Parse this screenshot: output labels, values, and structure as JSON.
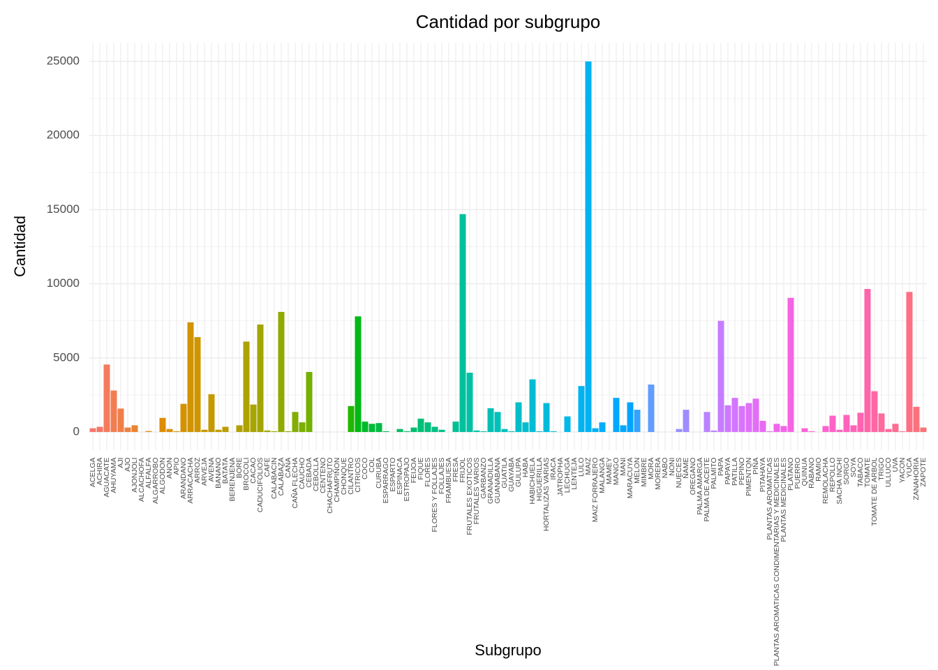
{
  "chart_data": {
    "type": "bar",
    "title": "Cantidad por subgrupo",
    "x_label": "Subgrupo",
    "y_label": "Cantidad",
    "categories": [
      "ACELGA",
      "ACHIRA",
      "AGUACATE",
      "AHUYAMA",
      "AJI",
      "AJO",
      "AJONJOLI",
      "ALCACHOFA",
      "ALFALFA",
      "ALGARROBO",
      "ALGODON",
      "ANON",
      "APIO",
      "ARANDANO",
      "ARRACACHA",
      "ARROZ",
      "ARVEJA",
      "AVENA",
      "BANANO",
      "BATATA",
      "BERENJENA",
      "BORE",
      "BROCOLI",
      "CACAO",
      "CADUCIFOLIOS",
      "CAFE",
      "CALABACIN",
      "CALABAZA",
      "CAÑA",
      "CAÑA FLECHA",
      "CAUCHO",
      "CEBADA",
      "CEBOLLA",
      "CENTENO",
      "CHACHAFRUTO",
      "CHAMPIÑON",
      "CHONQUE",
      "CILANTRO",
      "CITRICOS",
      "COCO",
      "COL",
      "CURUBA",
      "ESPARRAGO",
      "ESPARTO",
      "ESPINACA",
      "ESTROPAJO",
      "FEIJOA",
      "FIQUE",
      "FLORES",
      "FLORES Y FOLLAJES",
      "FOLLAJES",
      "FRAMBUESA",
      "FRESA",
      "FRIJOL",
      "FRUTALES EXOTICOS",
      "FRUTALES VARIOS",
      "GARBANZO",
      "GRANADILLA",
      "GUANABANA",
      "GUATILA",
      "GUAYABA",
      "GULUPA",
      "HABA",
      "HABICHUELA",
      "HIGUERILLA",
      "HORTALIZAS VARIAS",
      "IRACA",
      "JATROPHA",
      "LECHUGA",
      "LENTEJA",
      "LULO",
      "MAIZ",
      "MAIZ FORRAJERO",
      "MALANGA",
      "MAMEY",
      "MANGO",
      "MANI",
      "MARACUYA",
      "MELON",
      "MIMBRE",
      "MORA",
      "MORERA",
      "NABO",
      "NONI",
      "NUECES",
      "ÑAME",
      "OREGANO",
      "PALMA AMARGA",
      "PALMA DE ACEITE",
      "PALMITO",
      "PAPA",
      "PAPAYA",
      "PATILLA",
      "PEPINO",
      "PIMENTON",
      "PIÑA",
      "PITAHAYA",
      "PLANTAS AROMATICAS",
      "PLANTAS AROMATICAS CONDIMENTARIAS Y MEDICINALES",
      "PLANTAS MEDICINALES",
      "PLATANO",
      "PUERRO",
      "QUINUA",
      "RABANO",
      "RAMIO",
      "REMOLACHA",
      "REPOLLO",
      "SACHA INCHI",
      "SORGO",
      "SOYA",
      "TABACO",
      "TOMATE",
      "TOMATE DE ARBOL",
      "TRIGO",
      "ULLUCO",
      "UVA",
      "YACON",
      "YUCA",
      "ZANAHORIA",
      "ZAPOTE"
    ],
    "values": [
      250,
      350,
      4550,
      2800,
      1580,
      300,
      450,
      0,
      60,
      0,
      950,
      200,
      50,
      1900,
      7400,
      6400,
      150,
      2550,
      150,
      350,
      0,
      450,
      6100,
      1850,
      7250,
      100,
      50,
      8100,
      50,
      1350,
      650,
      4050,
      0,
      0,
      0,
      0,
      0,
      1750,
      7800,
      700,
      550,
      600,
      50,
      0,
      200,
      50,
      300,
      900,
      650,
      350,
      150,
      0,
      700,
      14700,
      4000,
      100,
      50,
      1600,
      1350,
      200,
      50,
      2000,
      650,
      3550,
      50,
      1950,
      50,
      0,
      1050,
      0,
      3100,
      25000,
      250,
      650,
      0,
      2300,
      450,
      2000,
      1500,
      0,
      3200,
      0,
      0,
      0,
      200,
      1500,
      0,
      0,
      1350,
      100,
      7500,
      1800,
      2300,
      1750,
      1950,
      2250,
      750,
      50,
      550,
      400,
      9050,
      0,
      250,
      50,
      0,
      400,
      1100,
      150,
      1150,
      450,
      1300,
      9650,
      2750,
      1250,
      200,
      550,
      50,
      9450,
      1700,
      300
    ],
    "color_hue_range": [
      15,
      375
    ],
    "color_chroma": 100,
    "color_luminance": 65,
    "ylim": [
      -1250,
      26250
    ],
    "yticks": [
      0,
      5000,
      10000,
      15000,
      20000,
      25000
    ],
    "grid": true,
    "legend": false
  }
}
